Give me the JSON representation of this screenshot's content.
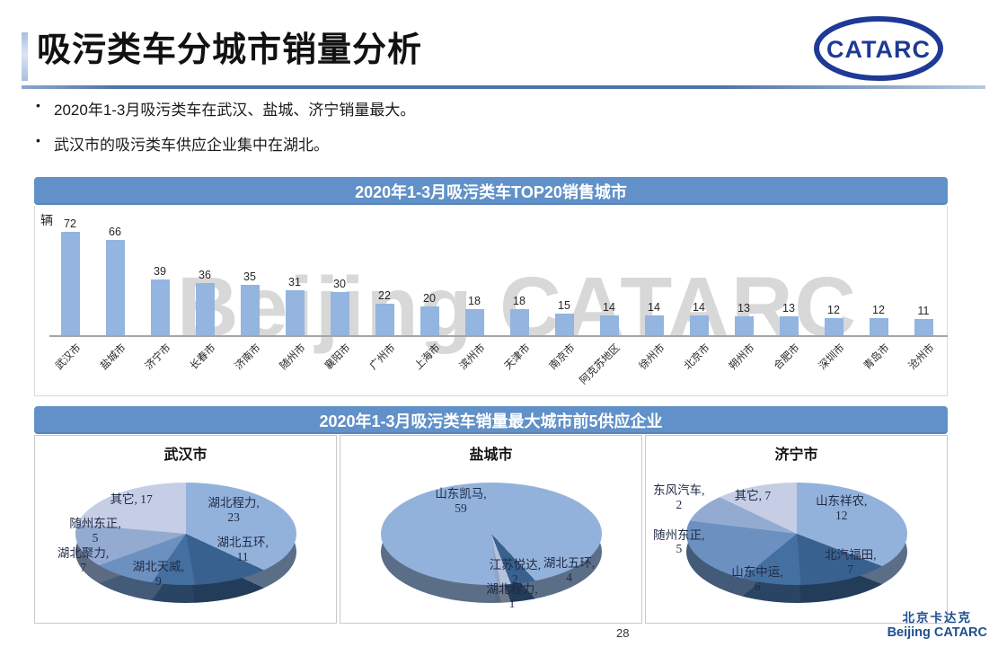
{
  "header": {
    "title": "吸污类车分城市销量分析",
    "logo_text": "CATARC"
  },
  "bullets": [
    "2020年1-3月吸污类车在武汉、盐城、济宁销量最大。",
    "武汉市的吸污类车供应企业集中在湖北。"
  ],
  "watermark": "Beijing CATARC",
  "footer": {
    "cn": "北京卡达克",
    "en": "Beijing CATARC",
    "page": "28"
  },
  "colors": {
    "banner_bg": "#6191C8",
    "bar_fill": "#93B5DF",
    "logo_blue": "#1E3A96",
    "footer_blue": "#1F4F8F",
    "watermark_gray": "#D8D8D8"
  },
  "chart_data": [
    {
      "type": "bar",
      "title": "2020年1-3月吸污类车TOP20销售城市",
      "ylabel": "辆",
      "categories": [
        "武汉市",
        "盐城市",
        "济宁市",
        "长春市",
        "济南市",
        "随州市",
        "襄阳市",
        "广州市",
        "上海市",
        "滨州市",
        "天津市",
        "南京市",
        "阿克苏地区",
        "徐州市",
        "北京市",
        "朔州市",
        "合肥市",
        "深圳市",
        "青岛市",
        "沧州市"
      ],
      "values": [
        72,
        66,
        39,
        36,
        35,
        31,
        30,
        22,
        20,
        18,
        18,
        15,
        14,
        14,
        14,
        13,
        13,
        12,
        12,
        11
      ],
      "ylim": [
        0,
        80
      ],
      "data_labels": true,
      "grid": false,
      "legend": "none"
    },
    {
      "type": "pie",
      "group_title": "2020年1-3月吸污类车销量最大城市前5供应企业",
      "title": "武汉市",
      "labels": [
        "湖北程力",
        "湖北五环",
        "湖北天威",
        "湖北聚力",
        "随州东正",
        "其它"
      ],
      "values": [
        23,
        11,
        9,
        7,
        5,
        17
      ],
      "colors": [
        "#93B2DB",
        "#38618F",
        "#4470A1",
        "#6C91C1",
        "#94ABD1",
        "#C5CEE4"
      ],
      "start_angle": 0
    },
    {
      "type": "pie",
      "title": "盐城市",
      "labels": [
        "山东凯马",
        "湖北五环",
        "江苏悦达",
        "湖北程力"
      ],
      "values": [
        59,
        4,
        2,
        1
      ],
      "colors": [
        "#93B2DB",
        "#38618F",
        "#B7C3DC",
        "#8FA6C9"
      ],
      "start_angle": 175
    },
    {
      "type": "pie",
      "title": "济宁市",
      "labels": [
        "山东祥农",
        "北汽福田",
        "山东中运",
        "随州东正",
        "东风汽车",
        "其它"
      ],
      "values": [
        12,
        7,
        6,
        5,
        2,
        7
      ],
      "colors": [
        "#93B2DB",
        "#38618F",
        "#4470A1",
        "#6C91C1",
        "#94ABD1",
        "#C5CEE4"
      ],
      "start_angle": 0
    }
  ]
}
